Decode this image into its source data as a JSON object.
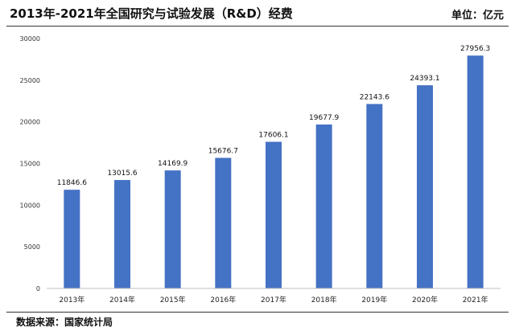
{
  "header": {
    "title": "2013年-2021年全国研究与试验发展（R&D）经费",
    "unit": "单位：亿元"
  },
  "footer": {
    "source": "数据来源：国家统计局"
  },
  "colors": {
    "bar": "#4472C4",
    "axis": "#BFBFBF"
  },
  "chart_data": {
    "type": "bar",
    "title": "2013年-2021年全国研究与试验发展（R&D）经费",
    "xlabel": "",
    "ylabel": "",
    "categories": [
      "2013年",
      "2014年",
      "2015年",
      "2016年",
      "2017年",
      "2018年",
      "2019年",
      "2020年",
      "2021年"
    ],
    "values": [
      11846.6,
      13015.6,
      14169.9,
      15676.7,
      17606.1,
      19677.9,
      22143.6,
      24393.1,
      27956.3
    ],
    "value_labels": [
      "11846.6",
      "13015.6",
      "14169.9",
      "15676.7",
      "17606.1",
      "19677.9",
      "22143.6",
      "24393.1",
      "27956.3"
    ],
    "ylim": [
      0,
      30000
    ],
    "yticks": [
      0,
      5000,
      10000,
      15000,
      20000,
      25000,
      30000
    ],
    "grid": false,
    "legend": "none"
  }
}
